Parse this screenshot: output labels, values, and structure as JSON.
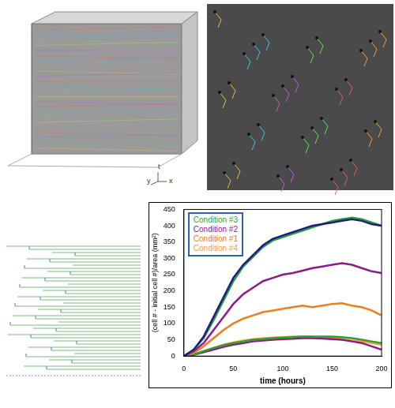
{
  "chart_data": {
    "type": "line",
    "x_label": "time (hours)",
    "y_label": "(cell # - initial cell #)/area (mm²)",
    "x": [
      0,
      10,
      20,
      30,
      40,
      50,
      60,
      70,
      80,
      90,
      100,
      110,
      120,
      130,
      140,
      150,
      160,
      170,
      180,
      190,
      200
    ],
    "xlim": [
      0,
      200
    ],
    "xticks": [
      0,
      50,
      100,
      150,
      200
    ],
    "ylim": [
      0,
      450
    ],
    "yticks": [
      0,
      50,
      100,
      150,
      200,
      250,
      300,
      350,
      400,
      450
    ],
    "grid": false,
    "legend": "top-left",
    "series": [
      {
        "color": "#1c1c8c",
        "values": [
          0,
          20,
          60,
          120,
          180,
          240,
          280,
          310,
          340,
          360,
          370,
          380,
          390,
          400,
          405,
          410,
          415,
          420,
          415,
          405,
          400
        ]
      },
      {
        "name": "Condition #3",
        "color": "#2ca02c",
        "values": [
          0,
          20,
          55,
          110,
          170,
          230,
          275,
          305,
          335,
          355,
          365,
          375,
          385,
          395,
          405,
          415,
          420,
          425,
          420,
          410,
          400
        ]
      },
      {
        "name": "Condition #2",
        "color": "#8b1a8b",
        "values": [
          0,
          15,
          40,
          80,
          120,
          160,
          190,
          210,
          230,
          240,
          250,
          255,
          262,
          270,
          275,
          280,
          285,
          280,
          270,
          260,
          255
        ]
      },
      {
        "name": "Condition #1",
        "color": "#f07d1a",
        "values": [
          0,
          10,
          30,
          55,
          80,
          100,
          115,
          125,
          135,
          140,
          145,
          150,
          155,
          150,
          155,
          160,
          162,
          155,
          150,
          140,
          125
        ]
      },
      {
        "color": "#2ca02c",
        "values": [
          0,
          5,
          15,
          25,
          33,
          40,
          45,
          50,
          52,
          55,
          57,
          58,
          60,
          60,
          60,
          60,
          58,
          55,
          50,
          45,
          40
        ]
      },
      {
        "color": "#8b1a8b",
        "values": [
          0,
          4,
          12,
          20,
          28,
          35,
          40,
          45,
          48,
          50,
          52,
          53,
          55,
          55,
          54,
          52,
          50,
          45,
          40,
          30,
          20
        ]
      },
      {
        "name": "Condition #4",
        "color": "#f5a040",
        "values": [
          0,
          6,
          15,
          25,
          35,
          42,
          48,
          52,
          55,
          57,
          58,
          60,
          60,
          60,
          58,
          55,
          52,
          48,
          45,
          40,
          35
        ]
      }
    ]
  },
  "panels": {
    "volume_axes": [
      "y",
      "t",
      "x"
    ]
  }
}
